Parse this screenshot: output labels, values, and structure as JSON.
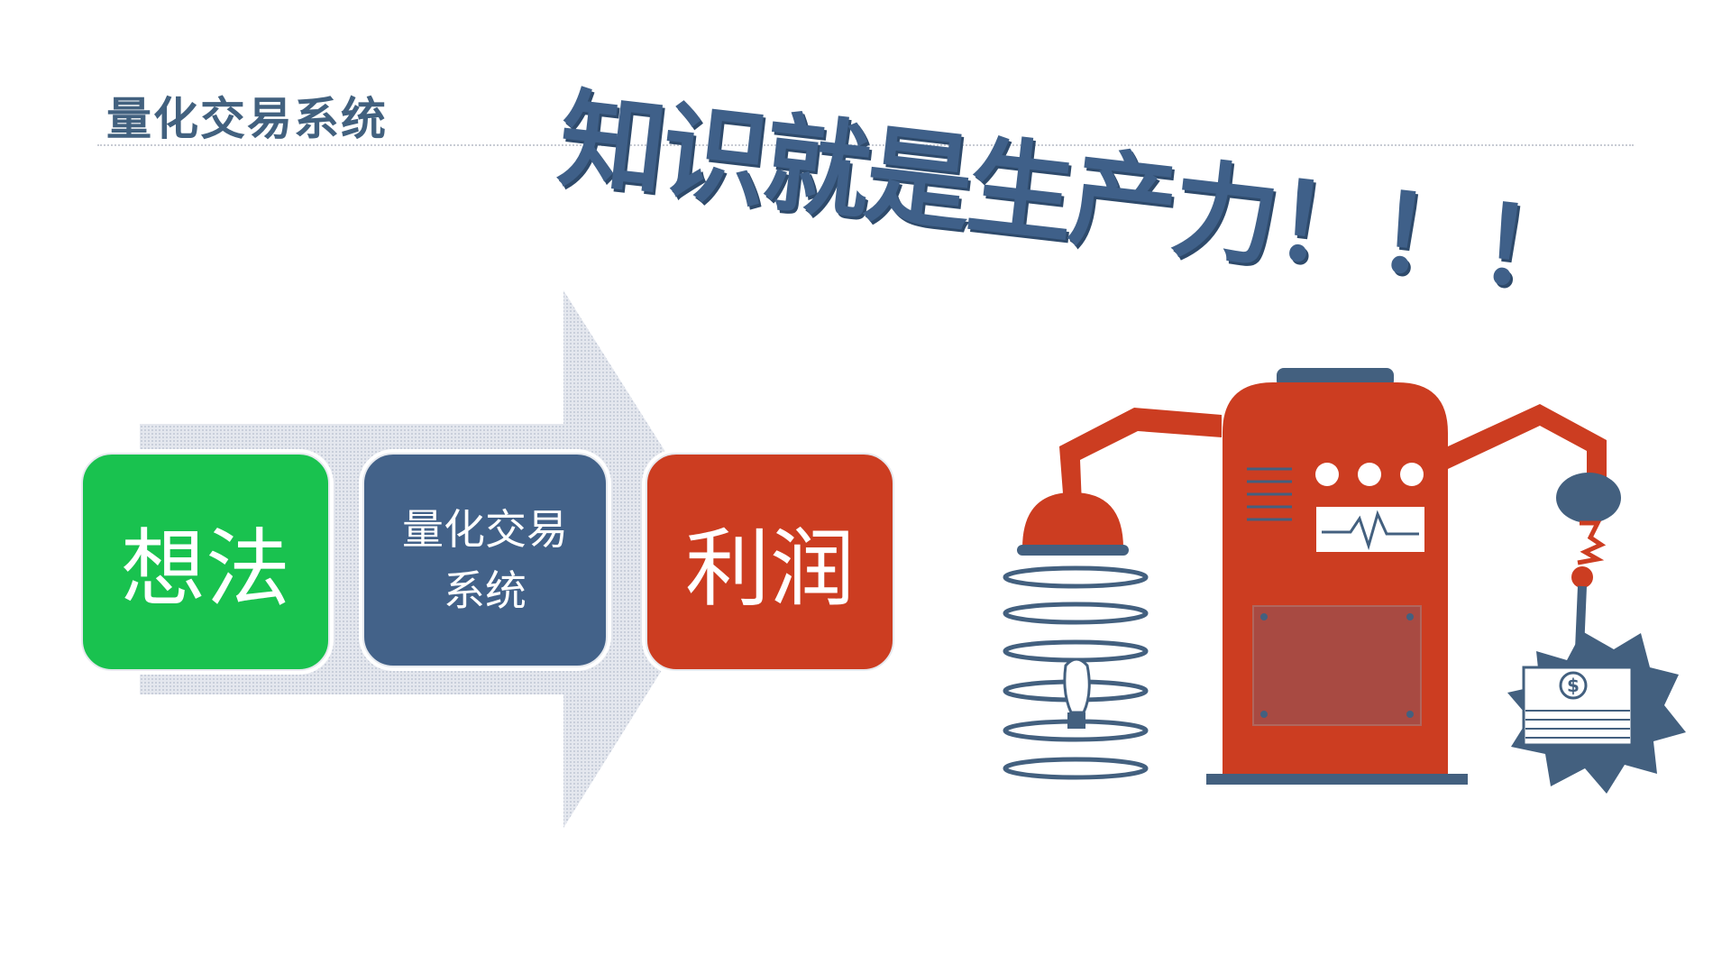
{
  "title": "量化交易系统",
  "slogan": "知识就是生产力！！！",
  "flow": {
    "steps": [
      {
        "label": "想法",
        "color": "#19c24f"
      },
      {
        "label": "量化交易系统",
        "color": "#436289"
      },
      {
        "label": "利润",
        "color": "#cc3d21"
      }
    ]
  },
  "colors": {
    "title": "#42617f",
    "slogan": "#3f6089",
    "machine_red": "#cc3d21",
    "machine_blue": "#43607f"
  },
  "illustration": {
    "icons": [
      "lightbulb-icon",
      "dollar-bills-icon",
      "robot-machine-icon"
    ],
    "money_symbol": "$"
  }
}
